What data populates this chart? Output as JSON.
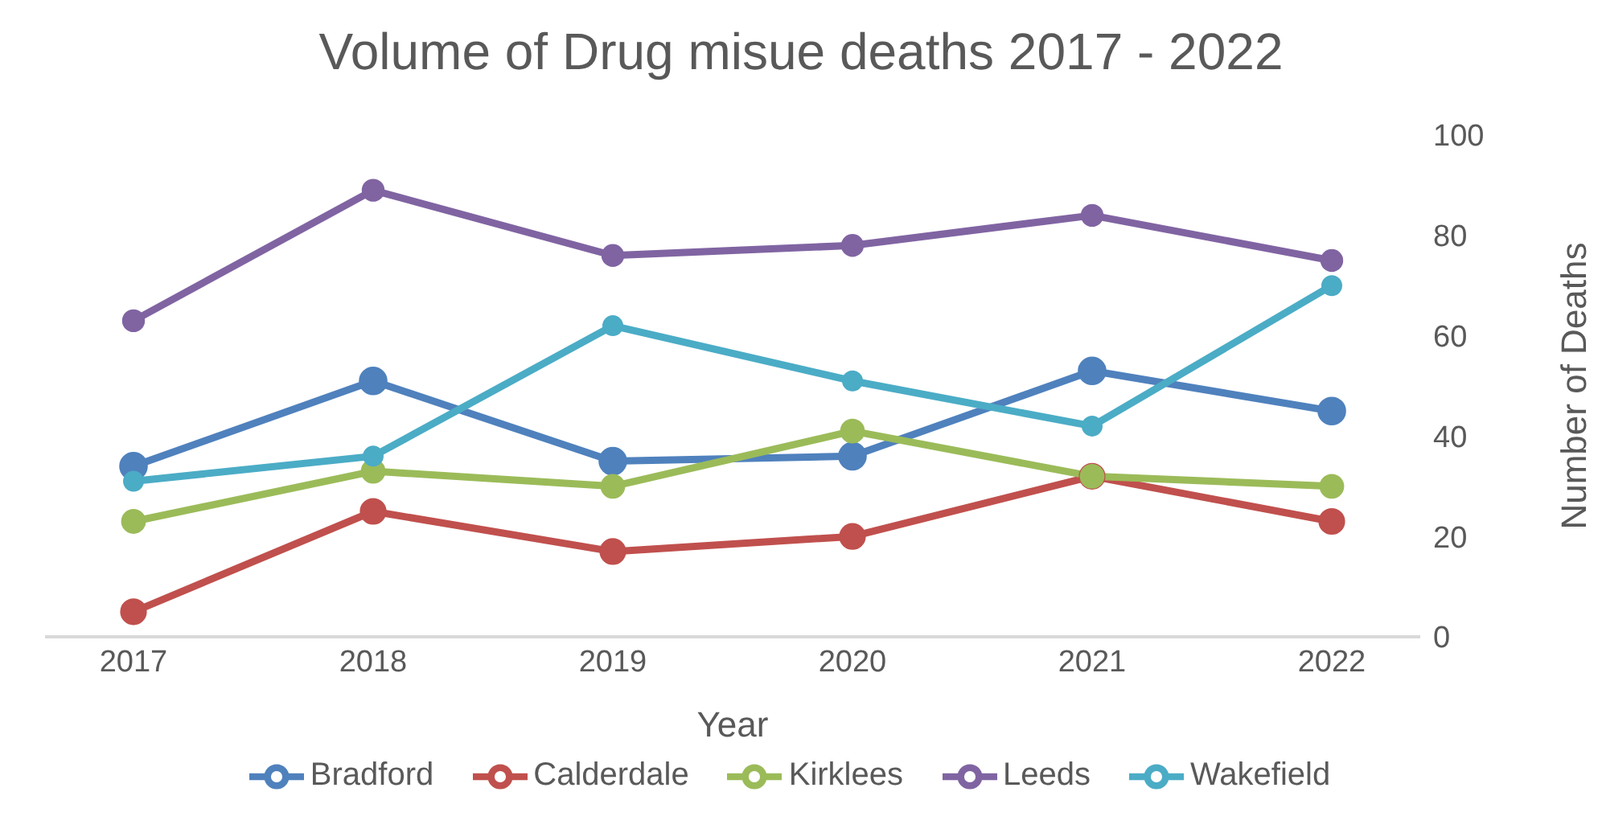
{
  "chart_data": {
    "type": "line",
    "title": "Volume of Drug misue deaths 2017 - 2022",
    "xlabel": "Year",
    "ylabel": "Number of Deaths",
    "categories": [
      "2017",
      "2018",
      "2019",
      "2020",
      "2021",
      "2022"
    ],
    "series": [
      {
        "name": "Bradford",
        "color": "#4f81bd",
        "values": [
          34,
          51,
          35,
          36,
          53,
          45
        ]
      },
      {
        "name": "Calderdale",
        "color": "#c0504d",
        "values": [
          5,
          25,
          17,
          20,
          32,
          23
        ]
      },
      {
        "name": "Kirklees",
        "color": "#9bbb59",
        "values": [
          23,
          33,
          30,
          41,
          32,
          30
        ]
      },
      {
        "name": "Leeds",
        "color": "#8064a2",
        "values": [
          63,
          89,
          76,
          78,
          84,
          75
        ]
      },
      {
        "name": "Wakefield",
        "color": "#4bacc6",
        "values": [
          31,
          36,
          62,
          51,
          42,
          70
        ]
      }
    ],
    "ylim": [
      0,
      100
    ],
    "yticks": [
      0,
      20,
      40,
      60,
      80,
      100
    ],
    "grid": false,
    "legend": "bottom",
    "marker": "circle",
    "line_style": "solid"
  }
}
